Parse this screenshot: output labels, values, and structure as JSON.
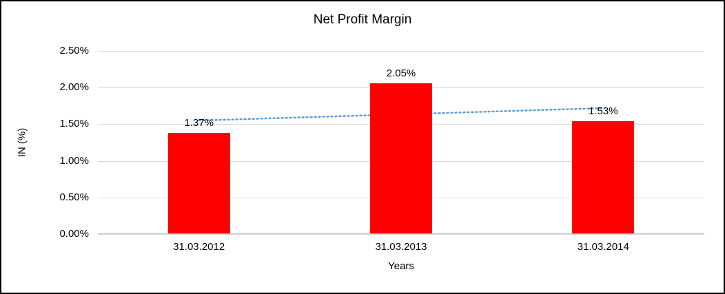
{
  "chart_data": {
    "type": "bar",
    "title": "Net Profit Margin",
    "categories": [
      "31.03.2012",
      "31.03.2013",
      "31.03.2014"
    ],
    "values": [
      1.37,
      2.05,
      1.53
    ],
    "value_labels": [
      "1.37%",
      "2.05%",
      "1.53%"
    ],
    "xlabel": "Years",
    "ylabel": "IN (%)",
    "ylim": [
      0,
      2.5
    ],
    "yticks": [
      0.0,
      0.5,
      1.0,
      1.5,
      2.0,
      2.5
    ],
    "ytick_labels": [
      "0.00%",
      "0.50%",
      "1.00%",
      "1.50%",
      "2.00%",
      "2.50%"
    ],
    "grid": true,
    "legend_position": "none",
    "bar_color": "#ff0000",
    "gridline_color": "#d9d9d9",
    "axis_color": "#bfbfbf",
    "trendline": {
      "type": "linear",
      "style": "dotted",
      "color": "#5b9bd5",
      "values": [
        1.55,
        1.635,
        1.72
      ]
    }
  }
}
